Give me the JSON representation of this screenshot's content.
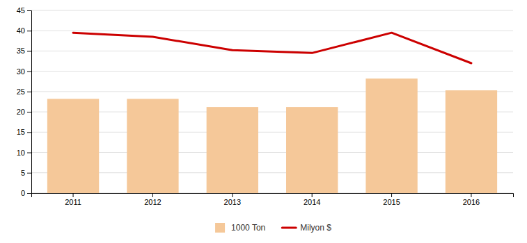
{
  "chart_data": {
    "type": "bar",
    "categories": [
      "2011",
      "2012",
      "2013",
      "2014",
      "2015",
      "2016"
    ],
    "series": [
      {
        "name": "1000 Ton",
        "type": "bar",
        "color": "#f5c899",
        "values": [
          23.2,
          23.2,
          21.2,
          21.2,
          28.2,
          25.3
        ]
      },
      {
        "name": "Milyon $",
        "type": "line",
        "color": "#cc0000",
        "values": [
          39.5,
          38.5,
          35.2,
          34.5,
          39.5,
          32.0
        ]
      }
    ],
    "ylim": [
      0,
      45
    ],
    "yticks": [
      0,
      5,
      10,
      15,
      20,
      25,
      30,
      35,
      40,
      45
    ],
    "grid": true,
    "legend": "bottom"
  }
}
